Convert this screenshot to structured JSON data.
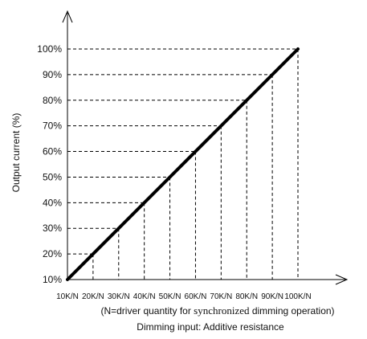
{
  "chart_data": {
    "type": "line",
    "title": "",
    "xlabel": "Dimming input: Additive resistance",
    "xlabel_note": {
      "open": "(N=driver quantity for ",
      "serif": "synchronized",
      "close": " dimming operation)"
    },
    "ylabel": "Output current (%)",
    "categories": [
      "10K/N",
      "20K/N",
      "30K/N",
      "40K/N",
      "50K/N",
      "60K/N",
      "70K/N",
      "80K/N",
      "90K/N",
      "100K/N"
    ],
    "y_tick_labels": [
      "10%",
      "20%",
      "30%",
      "40%",
      "50%",
      "60%",
      "70%",
      "80%",
      "90%",
      "100%"
    ],
    "ylim": [
      10,
      100
    ],
    "x_unit_per_N": "K",
    "series": [
      {
        "x": [
          10,
          20,
          30,
          40,
          50,
          60,
          70,
          80,
          90,
          100
        ],
        "y": [
          10,
          20,
          30,
          40,
          50,
          60,
          70,
          80,
          90,
          100
        ]
      }
    ],
    "grid": "dashed guide lines from each point to both axes",
    "legend": "none",
    "colors": {
      "line": "#000000",
      "guides": "#000000",
      "axes": "#000000"
    }
  }
}
